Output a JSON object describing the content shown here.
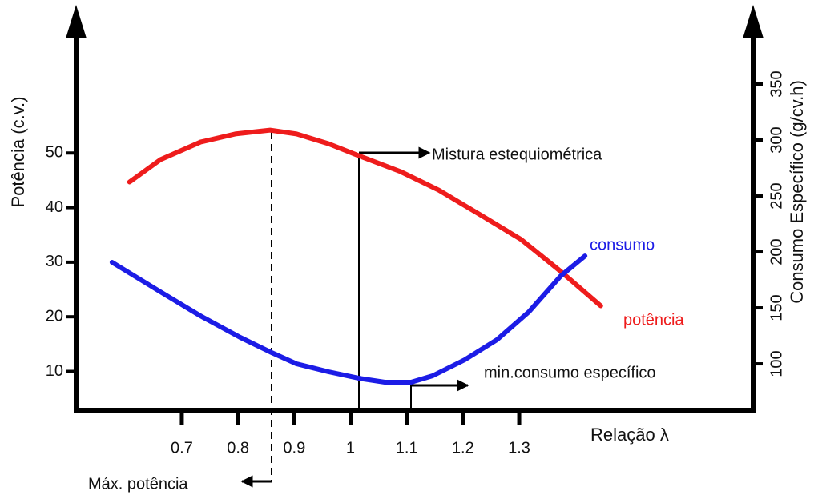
{
  "chart_data": {
    "type": "line",
    "x_label": "Relação λ",
    "y_label": "Potência (c.v.)",
    "y2_label": "Consumo Específico (g/cv.h)",
    "xlim": [
      0.512,
      1.716
    ],
    "xticks": [
      0.7,
      0.8,
      0.9,
      1,
      1.1,
      1.2,
      1.3
    ],
    "ylim": [
      2.9,
      73.9
    ],
    "yticks": [
      10,
      20,
      30,
      40,
      50
    ],
    "y2lim": [
      58.6,
      405
    ],
    "y2ticks": [
      100,
      150,
      200,
      250,
      300,
      350
    ],
    "series": [
      {
        "name": "potência",
        "color": "#ee1c1c",
        "x": [
          0.607,
          0.662,
          0.733,
          0.795,
          0.857,
          0.904,
          0.961,
          1.015,
          1.089,
          1.157,
          1.232,
          1.303,
          1.374,
          1.445
        ],
        "values": [
          44.7,
          48.8,
          52.0,
          53.5,
          54.2,
          53.5,
          51.7,
          49.5,
          46.6,
          43.2,
          38.6,
          34.2,
          28.3,
          22.0
        ]
      },
      {
        "name": "consumo",
        "color": "#1c1ce6",
        "axis": "y2",
        "x": [
          0.576,
          0.662,
          0.733,
          0.804,
          0.857,
          0.904,
          0.961,
          1.015,
          1.061,
          1.108,
          1.146,
          1.203,
          1.26,
          1.317,
          1.374,
          1.417
        ],
        "values": [
          190.7,
          164.3,
          142.9,
          123.6,
          110.7,
          100,
          92.9,
          87.1,
          83.6,
          83.6,
          89.3,
          103.6,
          121.4,
          146.4,
          178.6,
          196.4
        ]
      }
    ],
    "annotations": [
      "Mistura estequiométrica",
      "min.consumo específico",
      "Máx. potência"
    ]
  }
}
